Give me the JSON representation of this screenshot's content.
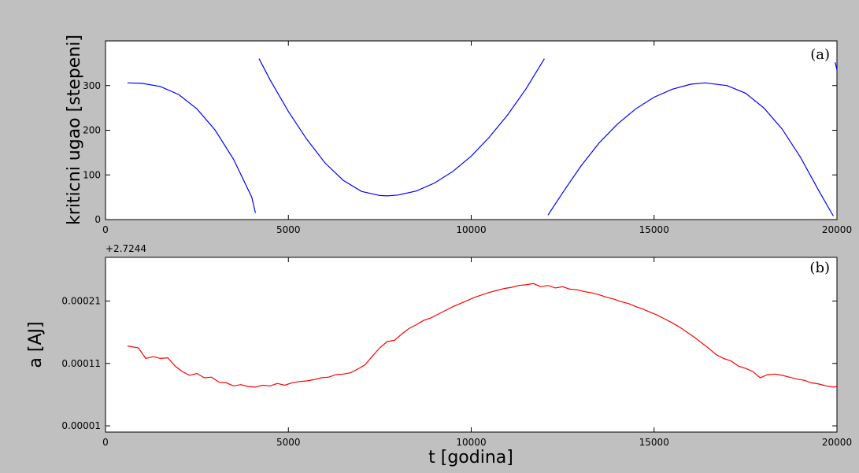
{
  "chart_data": [
    {
      "type": "line",
      "panel_label": "(a)",
      "title": "",
      "xlabel": "",
      "ylabel": "kriticni ugao [stepeni]",
      "xlim": [
        0,
        20000
      ],
      "ylim": [
        0,
        400
      ],
      "xticks": [
        0,
        5000,
        10000,
        15000,
        20000
      ],
      "xtick_labels": [
        "0",
        "5000",
        "10000",
        "15000",
        "20000"
      ],
      "yticks": [
        0,
        100,
        200,
        300
      ],
      "ytick_labels": [
        "0",
        "100",
        "200",
        "300"
      ],
      "grid": false,
      "color": "#0000ff",
      "series": [
        {
          "x": [
            600,
            1000,
            1500,
            2000,
            2500,
            3000,
            3500,
            4000,
            4100
          ],
          "y": [
            306,
            305,
            298,
            280,
            248,
            200,
            135,
            50,
            15
          ]
        },
        {
          "x": [
            4200,
            4500,
            5000,
            5500,
            6000,
            6500,
            7000,
            7500,
            7700,
            8000,
            8500,
            9000,
            9500,
            10000,
            10500,
            11000,
            11500,
            12000
          ],
          "y": [
            360,
            313,
            242,
            180,
            127,
            88,
            63,
            54,
            53,
            55,
            64,
            82,
            108,
            142,
            185,
            235,
            293,
            360
          ]
        },
        {
          "x": [
            12100,
            12500,
            13000,
            13500,
            14000,
            14500,
            15000,
            15500,
            16000,
            16400,
            17000,
            17500,
            18000,
            18500,
            19000,
            19500,
            19900
          ],
          "y": [
            10,
            60,
            120,
            172,
            214,
            248,
            274,
            292,
            303,
            306,
            300,
            283,
            250,
            203,
            140,
            65,
            8
          ]
        },
        {
          "x": [
            19950,
            20000
          ],
          "y": [
            352,
            335
          ]
        }
      ]
    },
    {
      "type": "line",
      "panel_label": "(b)",
      "title": "",
      "xlabel": "t [godina]",
      "ylabel": "a [AJ]",
      "offset_text": "+2.7244",
      "xlim": [
        0,
        20000
      ],
      "ylim": [
        0,
        0.00028
      ],
      "xticks": [
        0,
        5000,
        10000,
        15000,
        20000
      ],
      "xtick_labels": [
        "0",
        "5000",
        "10000",
        "15000",
        "20000"
      ],
      "yticks": [
        1e-05,
        0.00011,
        0.00021
      ],
      "ytick_labels": [
        "0.00001",
        "0.00011",
        "0.00021"
      ],
      "grid": false,
      "color": "#ff0000",
      "series": [
        {
          "x": [
            600,
            900,
            1100,
            1300,
            1500,
            1700,
            1900,
            2100,
            2300,
            2500,
            2700,
            2900,
            3100,
            3300,
            3500,
            3700,
            3900,
            4100,
            4300,
            4500,
            4700,
            4900,
            5100,
            5300,
            5500,
            5700,
            5900,
            6100,
            6300,
            6500,
            6700,
            6900,
            7100,
            7300,
            7500,
            7700,
            7900,
            8100,
            8300,
            8500,
            8700,
            8900,
            9100,
            9300,
            9500,
            9700,
            9900,
            10100,
            10300,
            10500,
            10700,
            10900,
            11100,
            11300,
            11500,
            11700,
            11900,
            12100,
            12300,
            12500,
            12700,
            12900,
            13100,
            13300,
            13500,
            13700,
            13900,
            14100,
            14300,
            14500,
            14700,
            14900,
            15100,
            15300,
            15500,
            15700,
            15900,
            16100,
            16300,
            16500,
            16700,
            16900,
            17100,
            17300,
            17500,
            17700,
            17900,
            18100,
            18300,
            18500,
            18700,
            18900,
            19100,
            19300,
            19500,
            19700,
            19900,
            20000
          ],
          "y": [
            0.000138,
            0.000135,
            0.000118,
            0.000121,
            0.000118,
            0.000119,
            0.000106,
            9.7e-05,
            9.1e-05,
            9.4e-05,
            8.7e-05,
            8.8e-05,
            8e-05,
            7.9e-05,
            7.4e-05,
            7.6e-05,
            7.3e-05,
            7.2e-05,
            7.5e-05,
            7.4e-05,
            7.8e-05,
            7.5e-05,
            7.9e-05,
            8.1e-05,
            8.2e-05,
            8.4e-05,
            8.7e-05,
            8.8e-05,
            9.2e-05,
            9.3e-05,
            9.5e-05,
            0.000101,
            0.000108,
            0.000122,
            0.000135,
            0.000145,
            0.000147,
            0.000157,
            0.000166,
            0.000172,
            0.000179,
            0.000183,
            0.000189,
            0.000195,
            0.000201,
            0.000206,
            0.000211,
            0.000216,
            0.00022,
            0.000224,
            0.000227,
            0.00023,
            0.000232,
            0.000235,
            0.000236,
            0.000238,
            0.000233,
            0.000235,
            0.000231,
            0.000233,
            0.000229,
            0.000228,
            0.000225,
            0.000223,
            0.00022,
            0.000216,
            0.000213,
            0.000209,
            0.000206,
            0.000201,
            0.000197,
            0.000192,
            0.000187,
            0.000181,
            0.000175,
            0.000168,
            0.00016,
            0.000152,
            0.000143,
            0.000134,
            0.000124,
            0.000118,
            0.000114,
            0.000106,
            0.000102,
            9.7e-05,
            8.7e-05,
            9.2e-05,
            9.3e-05,
            9.1e-05,
            8.8e-05,
            8.5e-05,
            8.3e-05,
            7.9e-05,
            7.7e-05,
            7.4e-05,
            7.2e-05,
            7.3e-05
          ]
        }
      ]
    }
  ]
}
